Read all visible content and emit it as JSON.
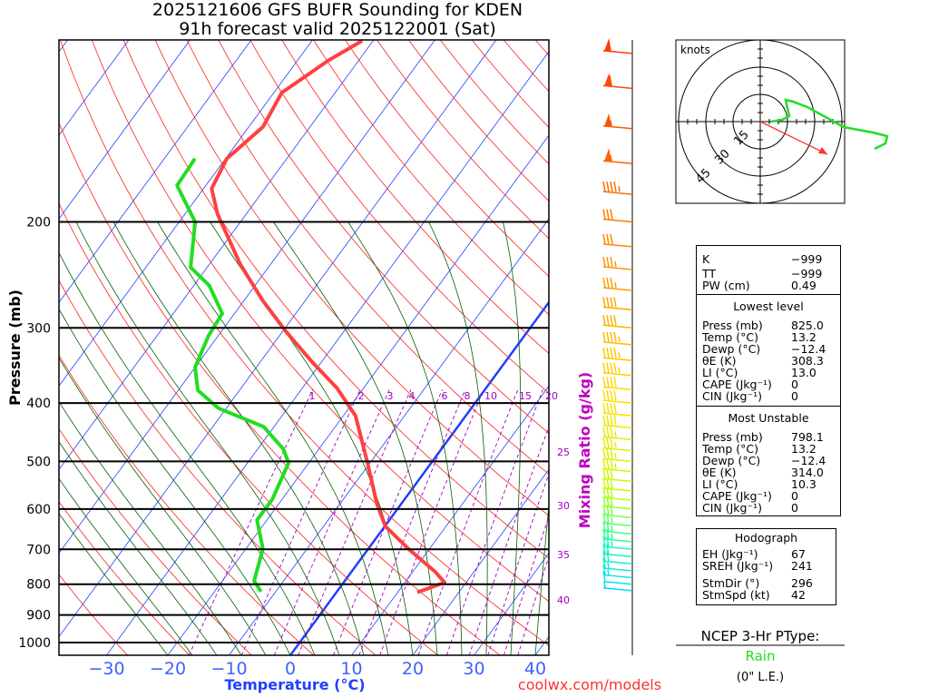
{
  "title": {
    "line1": "2025121606 GFS BUFR Sounding for KDEN",
    "line2": "91h forecast valid 2025122001 (Sat)"
  },
  "footer": {
    "site": "coolwx.com/models"
  },
  "colors": {
    "temp": "#ff4040",
    "dewp": "#22dd22",
    "isotherm": "#2040ff",
    "dry": "#ff2020",
    "moist": "#006000",
    "mixing": "#a000c0"
  },
  "chart_data": {
    "type": "line",
    "title": "2025121606 GFS BUFR Sounding for KDEN",
    "xlabel": "Temperature (°C)",
    "ylabel": "Pressure (mb)",
    "y2label": "Mixing Ratio (g/kg)",
    "xlim": [
      -40,
      40
    ],
    "ylim": [
      1000,
      100
    ],
    "x_ticks": [
      "−30",
      "−20",
      "−10",
      "0",
      "10",
      "20",
      "30",
      "40"
    ],
    "x_tick_values": [
      -30,
      -20,
      -10,
      0,
      10,
      20,
      30,
      40
    ],
    "y_ticks": [
      "200",
      "300",
      "400",
      "500",
      "600",
      "700",
      "800",
      "900",
      "1000"
    ],
    "y_tick_values": [
      200,
      300,
      400,
      500,
      600,
      700,
      800,
      900,
      1000
    ],
    "mixing_ratio_labels": [
      "1",
      "2",
      "3",
      "4",
      "6",
      "8",
      "10",
      "15",
      "20"
    ],
    "mixing_ratio_right_labels": [
      "25",
      "30",
      "35",
      "40"
    ],
    "series": [
      {
        "name": "Temperature",
        "p": [
          825,
          795,
          763,
          700,
          641,
          588,
          503,
          420,
          378,
          343,
          304,
          270,
          235,
          194,
          176,
          157,
          139,
          122,
          108,
          100
        ],
        "t": [
          13.2,
          16.5,
          13.7,
          6.7,
          0.1,
          -4,
          -10.4,
          -18,
          -24.3,
          -31.3,
          -39.5,
          -47,
          -55,
          -64.7,
          -68.7,
          -69.8,
          -67.7,
          -68.7,
          -65,
          -61.8
        ]
      },
      {
        "name": "Dewpoint",
        "p": [
          823,
          790,
          699,
          626,
          578,
          503,
          477,
          438,
          408,
          381,
          349,
          309,
          284,
          255,
          238,
          200,
          174,
          157
        ],
        "t": [
          -12.4,
          -14.8,
          -17.2,
          -21.6,
          -21.6,
          -23.3,
          -25.8,
          -31.7,
          -41.3,
          -46.8,
          -50,
          -51.6,
          -52,
          -57.5,
          -62.7,
          -67.4,
          -74.7,
          -75
        ]
      }
    ],
    "winds": {
      "p": [
        820,
        800,
        780,
        760,
        740,
        720,
        700,
        680,
        660,
        640,
        620,
        600,
        580,
        560,
        540,
        520,
        500,
        480,
        460,
        440,
        420,
        400,
        380,
        360,
        340,
        320,
        300,
        280,
        260,
        240,
        220,
        200,
        180,
        160,
        140,
        120,
        105
      ],
      "speed": [
        5,
        10,
        15,
        18,
        20,
        22,
        25,
        25,
        25,
        28,
        30,
        30,
        30,
        32,
        32,
        35,
        35,
        35,
        38,
        40,
        40,
        40,
        42,
        45,
        45,
        45,
        40,
        40,
        35,
        35,
        30,
        30,
        45,
        55,
        55,
        60,
        50
      ]
    },
    "hodograph": {
      "label": "knots",
      "ring_labels": [
        "15",
        "30",
        "45"
      ],
      "u": [
        6,
        12,
        16,
        14,
        18,
        26,
        46,
        62,
        70,
        69,
        63
      ],
      "v": [
        0,
        1,
        3,
        12,
        11,
        8,
        -3,
        -6,
        -8,
        -12,
        -15
      ],
      "storm_u": 37,
      "storm_v": -18
    }
  },
  "indices": {
    "k": {
      "label": "K",
      "value": "−999"
    },
    "tt": {
      "label": "TT",
      "value": "−999"
    },
    "pw": {
      "label": "PW (cm)",
      "value": "0.49"
    }
  },
  "lowest": {
    "header": "Lowest level",
    "rows": [
      {
        "label": "Press (mb)",
        "value": "825.0"
      },
      {
        "label": "Temp (°C)",
        "value": "13.2"
      },
      {
        "label": "Dewp (°C)",
        "value": "−12.4"
      },
      {
        "label": "θE (K)",
        "value": "308.3"
      },
      {
        "label": "LI (°C)",
        "value": "13.0"
      },
      {
        "label": "CAPE (Jkg⁻¹)",
        "value": "0"
      },
      {
        "label": "CIN (Jkg⁻¹)",
        "value": "0"
      }
    ]
  },
  "unstable": {
    "header": "Most Unstable",
    "rows": [
      {
        "label": "Press (mb)",
        "value": "798.1"
      },
      {
        "label": "Temp (°C)",
        "value": "13.2"
      },
      {
        "label": "Dewp (°C)",
        "value": "−12.4"
      },
      {
        "label": "θE (K)",
        "value": "314.0"
      },
      {
        "label": "LI (°C)",
        "value": "10.3"
      },
      {
        "label": "CAPE (Jkg⁻¹)",
        "value": "0"
      },
      {
        "label": "CIN (Jkg⁻¹)",
        "value": "0"
      }
    ]
  },
  "hodo_stats": {
    "header": "Hodograph",
    "rows": [
      {
        "label": "EH (Jkg⁻¹)",
        "value": "67"
      },
      {
        "label": "SREH (Jkg⁻¹)",
        "value": "241"
      },
      {
        "label": "StmDir (°)",
        "value": "296"
      },
      {
        "label": "StmSpd (kt)",
        "value": "42"
      }
    ]
  },
  "ptype": {
    "title": "NCEP 3-Hr PType:",
    "value": "Rain",
    "amount": "(0\" L.E.)"
  }
}
